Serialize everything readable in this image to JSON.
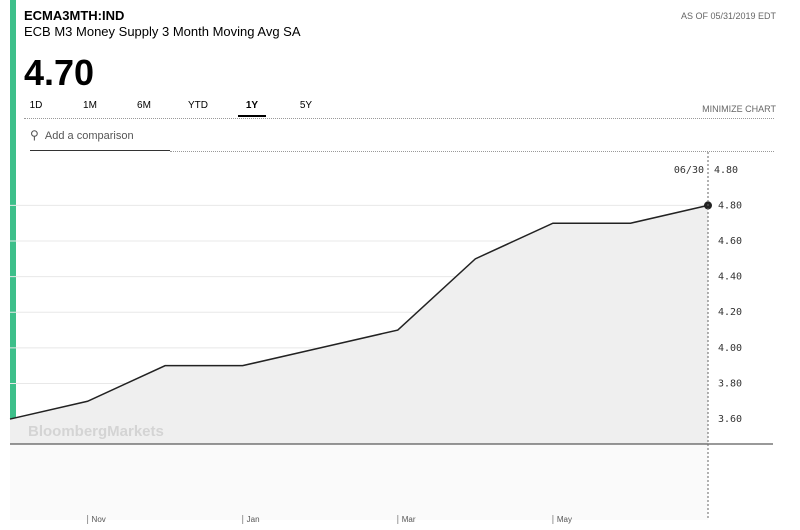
{
  "header": {
    "ticker": "ECMA3MTH:IND",
    "name": "ECB M3 Money Supply 3 Month Moving Avg SA",
    "price": "4.70",
    "as_of": "AS OF 05/31/2019 EDT",
    "tabs": [
      "1D",
      "1M",
      "6M",
      "YTD",
      "1Y",
      "5Y"
    ],
    "active_tab": 4,
    "minimize": "MINIMIZE CHART",
    "comparison": "Add a comparison"
  },
  "chart_data": {
    "type": "line",
    "watermark": "BloombergMarkets",
    "categories": [
      null,
      "Nov",
      null,
      "Jan",
      null,
      "Mar",
      null,
      "May",
      null,
      null
    ],
    "series": [
      {
        "color": "#222222",
        "values": [
          3.6,
          3.7,
          3.9,
          3.9,
          4.0,
          4.1,
          4.5,
          4.7,
          4.7,
          4.8
        ]
      }
    ],
    "ylim": [
      3.46,
      5.1
    ],
    "yticks": [
      {
        "value": 3.6,
        "label": "3.60"
      },
      {
        "value": 3.8,
        "label": "3.80"
      },
      {
        "value": 4.0,
        "label": "4.00"
      },
      {
        "value": 4.2,
        "label": "4.20"
      },
      {
        "value": 4.4,
        "label": "4.40"
      },
      {
        "value": 4.6,
        "label": "4.60"
      },
      {
        "value": 4.8,
        "label": "4.80"
      }
    ],
    "grid": true,
    "crosshair": {
      "date": "06/30",
      "value": "4.80"
    }
  }
}
